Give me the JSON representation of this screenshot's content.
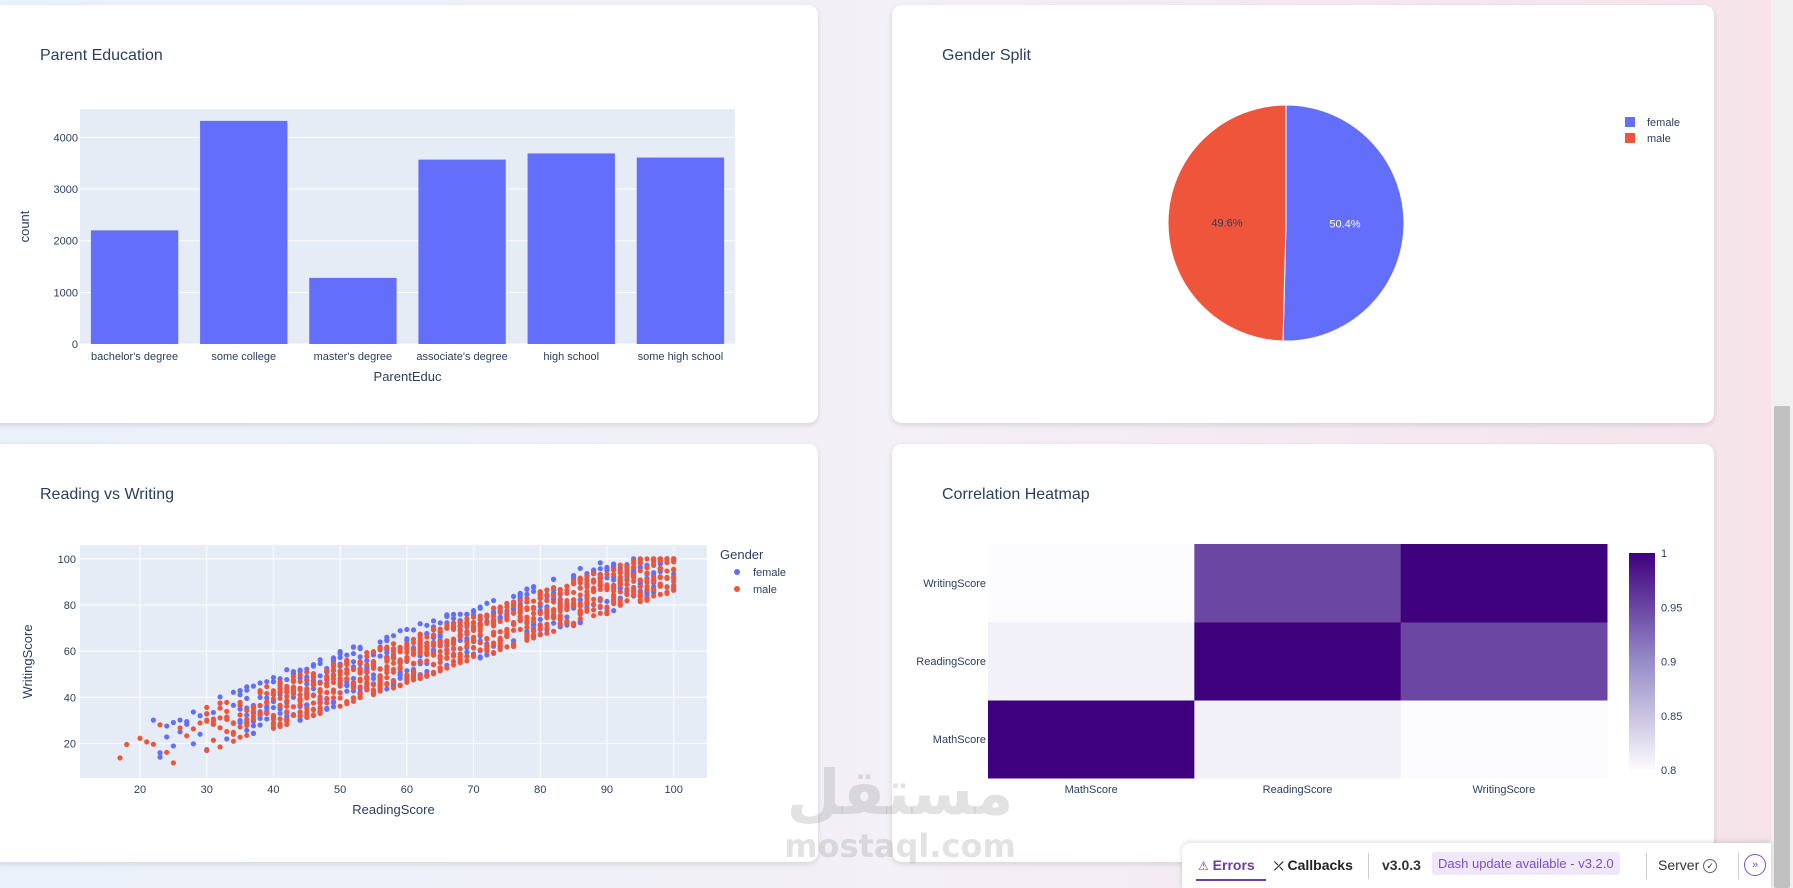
{
  "cards": {
    "parent_education": {
      "title": "Parent Education"
    },
    "gender_split": {
      "title": "Gender Split"
    },
    "reading_vs_writing": {
      "title": "Reading vs Writing"
    },
    "correlation_heatmap": {
      "title": "Correlation Heatmap"
    }
  },
  "colors": {
    "plot_bg": "#e5ecf6",
    "bar": "#636efa",
    "female": "#636efa",
    "male": "#ef553b",
    "heat_high": "#3f007d",
    "heat_low": "#fcfbfd"
  },
  "chart_data": [
    {
      "type": "bar",
      "title": "Parent Education",
      "xlabel": "ParentEduc",
      "ylabel": "count",
      "categories": [
        "bachelor's degree",
        "some college",
        "master's degree",
        "associate's degree",
        "high school",
        "some high school"
      ],
      "values": [
        2200,
        4320,
        1280,
        3570,
        3690,
        3610
      ],
      "ylim": [
        0,
        4550
      ],
      "yticks": [
        0,
        1000,
        2000,
        3000,
        4000
      ],
      "grid": true
    },
    {
      "type": "pie",
      "title": "Gender Split",
      "labels": [
        "female",
        "male"
      ],
      "values": [
        50.4,
        49.6
      ],
      "text_labels": [
        "50.4%",
        "49.6%"
      ],
      "legend": "top-right"
    },
    {
      "type": "scatter",
      "title": "Reading vs Writing",
      "xlabel": "ReadingScore",
      "ylabel": "WritingScore",
      "xlim": [
        11,
        105
      ],
      "ylim": [
        5,
        106
      ],
      "xticks": [
        20,
        30,
        40,
        50,
        60,
        70,
        80,
        90,
        100
      ],
      "yticks": [
        20,
        40,
        60,
        80,
        100
      ],
      "legend_title": "Gender",
      "series": [
        {
          "name": "female",
          "description": "points spread between reading 22 and 100, writing roughly reading minus 14 to plus 10"
        },
        {
          "name": "male",
          "description": "points spread between reading 16 and 100, writing roughly reading minus 14 to plus 6"
        }
      ],
      "legend": "top-right"
    },
    {
      "type": "heatmap",
      "title": "Correlation Heatmap",
      "x": [
        "MathScore",
        "ReadingScore",
        "WritingScore"
      ],
      "y": [
        "MathScore",
        "ReadingScore",
        "WritingScore"
      ],
      "z": [
        [
          1.0,
          0.81,
          0.8
        ],
        [
          0.81,
          1.0,
          0.95
        ],
        [
          0.8,
          0.95,
          1.0
        ]
      ],
      "colorbar_ticks": [
        "0.8",
        "0.85",
        "0.9",
        "0.95",
        "1"
      ],
      "zlim": [
        0.8,
        1.0
      ]
    }
  ],
  "devbar": {
    "errors": "Errors",
    "callbacks": "Callbacks",
    "version": "v3.0.3",
    "update": "Dash update available - v3.2.0",
    "server": "Server"
  },
  "watermark": {
    "arabic": "مستقل",
    "latin": "mostaql.com"
  }
}
